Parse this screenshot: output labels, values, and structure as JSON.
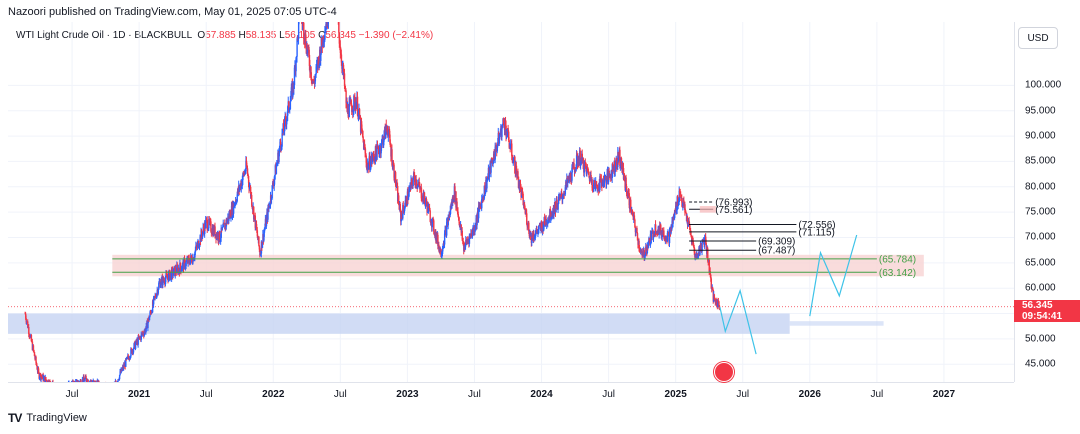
{
  "header": {
    "published_line": "Nazoori published on TradingView.com, May 01, 2025 07:05 UTC-4"
  },
  "legend": {
    "symbol": "WTI Light Crude Oil · 1D · BLACKBULL",
    "open_label": "O",
    "open": "57.885",
    "high_label": "H",
    "high": "58.135",
    "low_label": "L",
    "low": "56.105",
    "close_label": "C",
    "close": "56.345",
    "change": "−1.390 (−2.41%)"
  },
  "currency_button": "USD",
  "price_tag": {
    "price": "56.345",
    "countdown": "09:54:41"
  },
  "footer": {
    "brand": "TradingView"
  },
  "colors": {
    "up": "#2962ff",
    "down": "#f23645",
    "resistance_zone": "#f7d3d3",
    "support_zone": "#c5d3f3",
    "green_line": "#43a047",
    "projection": "#3ec3e8"
  },
  "chart_data": {
    "type": "candlestick",
    "title": "WTI Light Crude Oil · 1D · BLACKBULL",
    "ylim": [
      41.5,
      112.5
    ],
    "y_ticks": [
      "100.000",
      "95.000",
      "90.000",
      "85.000",
      "80.000",
      "75.000",
      "70.000",
      "65.000",
      "60.000",
      "55.000",
      "50.000",
      "45.000"
    ],
    "y_tick_values": [
      100,
      95,
      90,
      85,
      80,
      75,
      70,
      65,
      60,
      55,
      50,
      45
    ],
    "x_ticks": [
      {
        "label": "Jul",
        "t": 2020.5,
        "bold": false
      },
      {
        "label": "2021",
        "t": 2021.0,
        "bold": true
      },
      {
        "label": "Jul",
        "t": 2021.5,
        "bold": false
      },
      {
        "label": "2022",
        "t": 2022.0,
        "bold": true
      },
      {
        "label": "Jul",
        "t": 2022.5,
        "bold": false
      },
      {
        "label": "2023",
        "t": 2023.0,
        "bold": true
      },
      {
        "label": "Jul",
        "t": 2023.5,
        "bold": false
      },
      {
        "label": "2024",
        "t": 2024.0,
        "bold": true
      },
      {
        "label": "Jul",
        "t": 2024.5,
        "bold": false
      },
      {
        "label": "2025",
        "t": 2025.0,
        "bold": true
      },
      {
        "label": "Jul",
        "t": 2025.5,
        "bold": false
      },
      {
        "label": "2026",
        "t": 2026.0,
        "bold": true
      },
      {
        "label": "Jul",
        "t": 2026.5,
        "bold": false
      },
      {
        "label": "2027",
        "t": 2027.0,
        "bold": true
      }
    ],
    "price_path": [
      [
        2020.15,
        55
      ],
      [
        2020.25,
        43
      ],
      [
        2020.4,
        40
      ],
      [
        2020.6,
        42
      ],
      [
        2020.8,
        40
      ],
      [
        2020.95,
        48
      ],
      [
        2021.05,
        52
      ],
      [
        2021.15,
        61
      ],
      [
        2021.25,
        63
      ],
      [
        2021.4,
        66
      ],
      [
        2021.5,
        73
      ],
      [
        2021.6,
        70
      ],
      [
        2021.7,
        76
      ],
      [
        2021.8,
        84
      ],
      [
        2021.9,
        67
      ],
      [
        2021.96,
        75
      ],
      [
        2022.05,
        88
      ],
      [
        2022.15,
        100
      ],
      [
        2022.2,
        115
      ],
      [
        2022.3,
        100
      ],
      [
        2022.45,
        120
      ],
      [
        2022.55,
        95
      ],
      [
        2022.62,
        97
      ],
      [
        2022.7,
        84
      ],
      [
        2022.8,
        88
      ],
      [
        2022.85,
        92
      ],
      [
        2022.95,
        74
      ],
      [
        2023.05,
        82
      ],
      [
        2023.15,
        76
      ],
      [
        2023.25,
        67
      ],
      [
        2023.35,
        79
      ],
      [
        2023.42,
        68
      ],
      [
        2023.5,
        72
      ],
      [
        2023.6,
        82
      ],
      [
        2023.72,
        93
      ],
      [
        2023.82,
        82
      ],
      [
        2023.92,
        70
      ],
      [
        2024.0,
        72
      ],
      [
        2024.15,
        78
      ],
      [
        2024.28,
        86
      ],
      [
        2024.4,
        80
      ],
      [
        2024.5,
        82
      ],
      [
        2024.58,
        86
      ],
      [
        2024.68,
        74
      ],
      [
        2024.75,
        66
      ],
      [
        2024.85,
        72
      ],
      [
        2024.95,
        70
      ],
      [
        2025.03,
        79
      ],
      [
        2025.1,
        72
      ],
      [
        2025.15,
        66
      ],
      [
        2025.22,
        70
      ],
      [
        2025.28,
        58
      ],
      [
        2025.33,
        56.345
      ]
    ],
    "last_price": 56.345,
    "projection_path_1": [
      [
        2025.33,
        56.3
      ],
      [
        2025.37,
        51.5
      ],
      [
        2025.48,
        59.5
      ],
      [
        2025.6,
        47
      ]
    ],
    "projection_path_2": [
      [
        2026.0,
        54.5
      ],
      [
        2026.08,
        67
      ],
      [
        2026.22,
        58.5
      ],
      [
        2026.35,
        70.5
      ]
    ],
    "resistance_zone": {
      "low": 63.142,
      "high": 65.784
    },
    "support_zone": {
      "low": 51.0,
      "high": 55.0
    },
    "levels": [
      {
        "label": "(76.993)",
        "value": 76.993
      },
      {
        "label": "(75.561)",
        "value": 75.561
      },
      {
        "label": "(72.556)",
        "value": 72.556
      },
      {
        "label": "(71.115)",
        "value": 71.115
      },
      {
        "label": "(69.309)",
        "value": 69.309
      },
      {
        "label": "(67.487)",
        "value": 67.487
      },
      {
        "label": "(65.784)",
        "value": 65.784
      },
      {
        "label": "(63.142)",
        "value": 63.142
      }
    ]
  }
}
